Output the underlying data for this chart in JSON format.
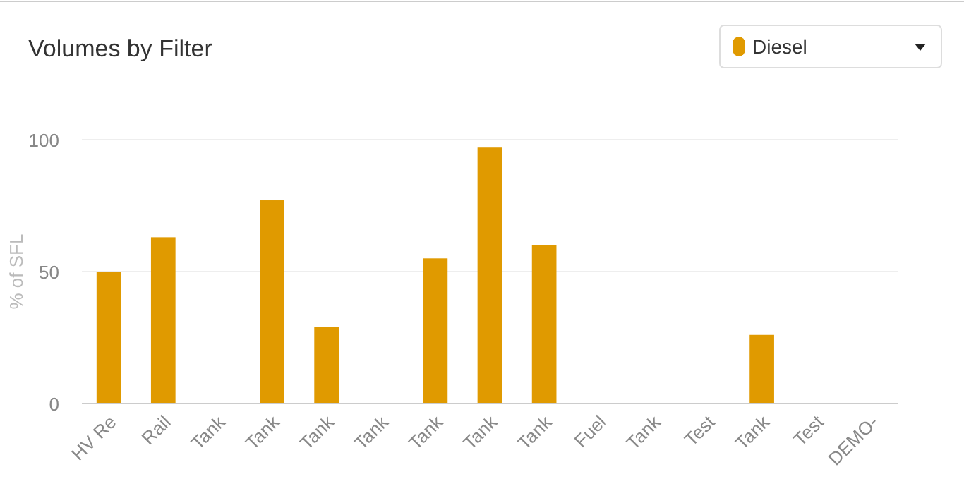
{
  "chart_data": {
    "type": "bar",
    "title": "Volumes by Filter",
    "ylabel": "% of SFL",
    "categories": [
      "HV Re",
      "Rail",
      "Tank",
      "Tank",
      "Tank",
      "Tank",
      "Tank",
      "Tank",
      "Tank",
      "Fuel",
      "Tank",
      "Test",
      "Tank",
      "Test",
      "DEMO-"
    ],
    "series": [
      {
        "name": "Diesel",
        "color": "#e09a00",
        "values": [
          50,
          63,
          0,
          77,
          29,
          0,
          55,
          97,
          60,
          0,
          0,
          0,
          26,
          0,
          0
        ]
      }
    ],
    "ylim": [
      0,
      100
    ],
    "yticks": [
      0,
      50,
      100
    ],
    "grid": "y",
    "legend": "top right"
  }
}
